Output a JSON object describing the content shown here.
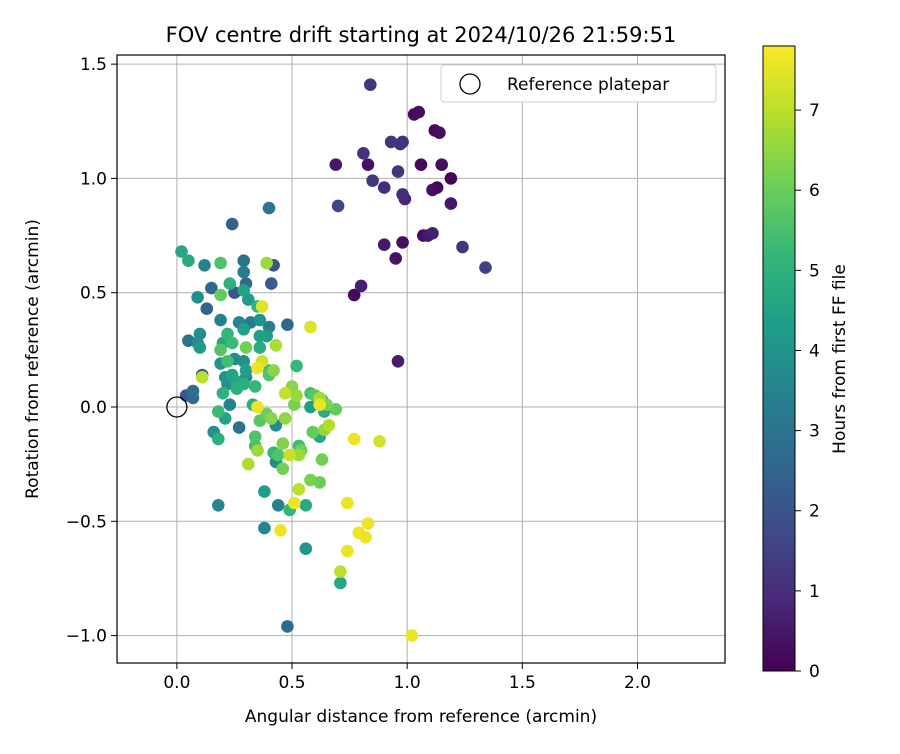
{
  "chart_data": {
    "type": "scatter",
    "title": "FOV centre drift starting at 2024/10/26 21:59:51",
    "xlabel": "Angular distance from reference (arcmin)",
    "ylabel": "Rotation from reference (arcmin)",
    "xlim": [
      -0.26,
      2.38
    ],
    "ylim": [
      -1.12,
      1.54
    ],
    "xticks": [
      0.0,
      0.5,
      1.0,
      1.5,
      2.0
    ],
    "xtick_labels": [
      "0.0",
      "0.5",
      "1.0",
      "1.5",
      "2.0"
    ],
    "yticks": [
      -1.0,
      -0.5,
      0.0,
      0.5,
      1.0,
      1.5
    ],
    "ytick_labels": [
      "−1.0",
      "−0.5",
      "0.0",
      "0.5",
      "1.0",
      "1.5"
    ],
    "grid": true,
    "legend": {
      "position": "top-right",
      "entries": [
        "Reference platepar"
      ]
    },
    "reference_point": {
      "x": 0.0,
      "y": 0.0,
      "label": "Reference platepar"
    },
    "colorbar": {
      "label": "Hours from first FF file",
      "range": [
        0,
        7.8
      ],
      "ticks": [
        0,
        1,
        2,
        3,
        4,
        5,
        6,
        7
      ],
      "tick_labels": [
        "0",
        "1",
        "2",
        "3",
        "4",
        "5",
        "6",
        "7"
      ],
      "colormap": "viridis"
    },
    "points": [
      [
        0.84,
        1.41,
        1.2
      ],
      [
        1.05,
        1.29,
        0.3
      ],
      [
        1.03,
        1.28,
        0.2
      ],
      [
        1.12,
        1.21,
        0.2
      ],
      [
        1.14,
        1.2,
        0.3
      ],
      [
        0.93,
        1.16,
        1.2
      ],
      [
        0.97,
        1.15,
        1.0
      ],
      [
        0.98,
        1.16,
        1.1
      ],
      [
        0.81,
        1.11,
        1.1
      ],
      [
        0.69,
        1.06,
        0.5
      ],
      [
        0.83,
        1.06,
        0.4
      ],
      [
        0.96,
        1.03,
        1.2
      ],
      [
        1.06,
        1.06,
        0.2
      ],
      [
        1.15,
        1.06,
        0.3
      ],
      [
        1.19,
        1.0,
        0.1
      ],
      [
        0.85,
        0.99,
        1.3
      ],
      [
        0.9,
        0.96,
        1.0
      ],
      [
        1.11,
        0.95,
        0.3
      ],
      [
        1.13,
        0.96,
        0.2
      ],
      [
        0.98,
        0.93,
        1.0
      ],
      [
        0.99,
        0.91,
        0.8
      ],
      [
        1.19,
        0.89,
        0.5
      ],
      [
        0.7,
        0.88,
        1.6
      ],
      [
        1.11,
        0.76,
        0.7
      ],
      [
        1.07,
        0.75,
        0.3
      ],
      [
        1.09,
        0.75,
        0.5
      ],
      [
        0.9,
        0.71,
        0.5
      ],
      [
        0.98,
        0.72,
        0.3
      ],
      [
        1.24,
        0.7,
        1.2
      ],
      [
        0.95,
        0.65,
        0.4
      ],
      [
        1.34,
        0.61,
        1.5
      ],
      [
        0.8,
        0.53,
        0.7
      ],
      [
        0.77,
        0.49,
        0.2
      ],
      [
        0.96,
        0.2,
        0.6
      ],
      [
        0.24,
        0.8,
        2.4
      ],
      [
        0.4,
        0.87,
        3.0
      ],
      [
        0.02,
        0.68,
        4.6
      ],
      [
        0.05,
        0.64,
        4.7
      ],
      [
        0.12,
        0.62,
        3.5
      ],
      [
        0.19,
        0.63,
        5.6
      ],
      [
        0.29,
        0.64,
        3.0
      ],
      [
        0.42,
        0.62,
        2.0
      ],
      [
        0.39,
        0.63,
        6.6
      ],
      [
        0.29,
        0.59,
        3.3
      ],
      [
        0.23,
        0.54,
        5.0
      ],
      [
        0.3,
        0.54,
        2.7
      ],
      [
        0.41,
        0.54,
        2.3
      ],
      [
        0.15,
        0.52,
        2.6
      ],
      [
        0.19,
        0.49,
        5.9
      ],
      [
        0.09,
        0.48,
        3.8
      ],
      [
        0.25,
        0.5,
        2.1
      ],
      [
        0.29,
        0.51,
        4.5
      ],
      [
        0.31,
        0.47,
        4.2
      ],
      [
        0.35,
        0.44,
        5.1
      ],
      [
        0.37,
        0.44,
        7.4
      ],
      [
        0.13,
        0.43,
        2.5
      ],
      [
        0.19,
        0.38,
        3.4
      ],
      [
        0.27,
        0.37,
        3.5
      ],
      [
        0.32,
        0.37,
        3.2
      ],
      [
        0.36,
        0.38,
        4.0
      ],
      [
        0.4,
        0.35,
        3.3
      ],
      [
        0.29,
        0.34,
        4.4
      ],
      [
        0.22,
        0.32,
        5.1
      ],
      [
        0.1,
        0.32,
        3.9
      ],
      [
        0.36,
        0.31,
        4.4
      ],
      [
        0.39,
        0.31,
        4.3
      ],
      [
        0.48,
        0.36,
        2.6
      ],
      [
        0.58,
        0.35,
        7.4
      ],
      [
        0.05,
        0.29,
        2.9
      ],
      [
        0.09,
        0.28,
        3.7
      ],
      [
        0.2,
        0.28,
        4.6
      ],
      [
        0.24,
        0.28,
        5.3
      ],
      [
        0.19,
        0.25,
        5.7
      ],
      [
        0.3,
        0.26,
        6.1
      ],
      [
        0.36,
        0.26,
        4.8
      ],
      [
        0.43,
        0.27,
        6.8
      ],
      [
        0.1,
        0.26,
        4.2
      ],
      [
        0.25,
        0.21,
        3.8
      ],
      [
        0.22,
        0.2,
        5.4
      ],
      [
        0.29,
        0.2,
        3.9
      ],
      [
        0.37,
        0.2,
        7.2
      ],
      [
        0.19,
        0.19,
        4.1
      ],
      [
        0.3,
        0.16,
        4.4
      ],
      [
        0.35,
        0.17,
        7.6
      ],
      [
        0.4,
        0.16,
        5.3
      ],
      [
        0.52,
        0.18,
        5.2
      ],
      [
        0.21,
        0.13,
        4.0
      ],
      [
        0.24,
        0.14,
        4.5
      ],
      [
        0.3,
        0.13,
        3.9
      ],
      [
        0.22,
        0.1,
        4.0
      ],
      [
        0.26,
        0.11,
        4.6
      ],
      [
        0.4,
        0.14,
        5.6
      ],
      [
        0.42,
        0.16,
        6.4
      ],
      [
        0.11,
        0.13,
        7.0
      ],
      [
        0.07,
        0.07,
        2.8
      ],
      [
        0.11,
        0.14,
        2.4
      ],
      [
        0.29,
        0.1,
        4.9
      ],
      [
        0.34,
        0.09,
        5.2
      ],
      [
        0.5,
        0.09,
        6.4
      ],
      [
        0.47,
        0.06,
        7.1
      ],
      [
        0.52,
        0.05,
        6.6
      ],
      [
        0.58,
        0.06,
        5.5
      ],
      [
        0.6,
        0.05,
        5.8
      ],
      [
        0.62,
        0.04,
        6.7
      ],
      [
        0.63,
        0.03,
        5.1
      ],
      [
        0.65,
        0.01,
        6.2
      ],
      [
        0.62,
        0.01,
        7.6
      ],
      [
        0.69,
        -0.01,
        5.9
      ],
      [
        0.2,
        0.06,
        5.0
      ],
      [
        0.26,
        0.08,
        4.9
      ],
      [
        0.04,
        0.05,
        2.1
      ],
      [
        0.07,
        0.04,
        2.7
      ],
      [
        0.23,
        0.01,
        3.5
      ],
      [
        0.33,
        0.01,
        4.9
      ],
      [
        0.35,
        0.0,
        7.6
      ],
      [
        0.51,
        0.01,
        6.2
      ],
      [
        0.58,
        0.0,
        4.3
      ],
      [
        0.64,
        -0.02,
        4.8
      ],
      [
        0.18,
        -0.02,
        5.3
      ],
      [
        0.21,
        -0.05,
        4.4
      ],
      [
        0.39,
        -0.03,
        6.0
      ],
      [
        0.41,
        -0.05,
        6.4
      ],
      [
        0.47,
        -0.05,
        6.5
      ],
      [
        0.36,
        -0.06,
        5.8
      ],
      [
        0.43,
        -0.08,
        3.7
      ],
      [
        0.66,
        -0.08,
        6.9
      ],
      [
        0.64,
        -0.1,
        6.5
      ],
      [
        0.59,
        -0.11,
        5.9
      ],
      [
        0.16,
        -0.11,
        3.9
      ],
      [
        0.27,
        -0.09,
        2.9
      ],
      [
        0.18,
        -0.14,
        4.9
      ],
      [
        0.62,
        -0.13,
        4.6
      ],
      [
        0.34,
        -0.13,
        5.6
      ],
      [
        0.77,
        -0.14,
        7.6
      ],
      [
        0.88,
        -0.15,
        7.3
      ],
      [
        0.34,
        -0.17,
        5.4
      ],
      [
        0.46,
        -0.16,
        6.3
      ],
      [
        0.53,
        -0.17,
        5.4
      ],
      [
        0.54,
        -0.19,
        6.1
      ],
      [
        0.35,
        -0.19,
        6.6
      ],
      [
        0.42,
        -0.2,
        5.2
      ],
      [
        0.44,
        -0.21,
        5.6
      ],
      [
        0.49,
        -0.21,
        7.2
      ],
      [
        0.53,
        -0.21,
        6.6
      ],
      [
        0.43,
        -0.24,
        3.8
      ],
      [
        0.63,
        -0.23,
        6.1
      ],
      [
        0.31,
        -0.25,
        6.8
      ],
      [
        0.46,
        -0.27,
        6.1
      ],
      [
        0.58,
        -0.32,
        6.2
      ],
      [
        0.62,
        -0.33,
        6.0
      ],
      [
        0.53,
        -0.36,
        7.0
      ],
      [
        0.38,
        -0.37,
        4.3
      ],
      [
        0.44,
        -0.43,
        3.5
      ],
      [
        0.51,
        -0.42,
        7.6
      ],
      [
        0.18,
        -0.43,
        3.6
      ],
      [
        0.49,
        -0.45,
        5.1
      ],
      [
        0.56,
        -0.43,
        4.7
      ],
      [
        0.74,
        -0.42,
        7.6
      ],
      [
        0.45,
        -0.54,
        7.6
      ],
      [
        0.38,
        -0.53,
        3.6
      ],
      [
        0.83,
        -0.51,
        7.6
      ],
      [
        0.79,
        -0.55,
        7.6
      ],
      [
        0.82,
        -0.57,
        7.6
      ],
      [
        0.56,
        -0.62,
        4.1
      ],
      [
        0.74,
        -0.63,
        7.6
      ],
      [
        0.71,
        -0.72,
        7.0
      ],
      [
        0.71,
        -0.77,
        4.6
      ],
      [
        0.48,
        -0.96,
        2.7
      ],
      [
        1.02,
        -1.0,
        7.6
      ]
    ]
  }
}
